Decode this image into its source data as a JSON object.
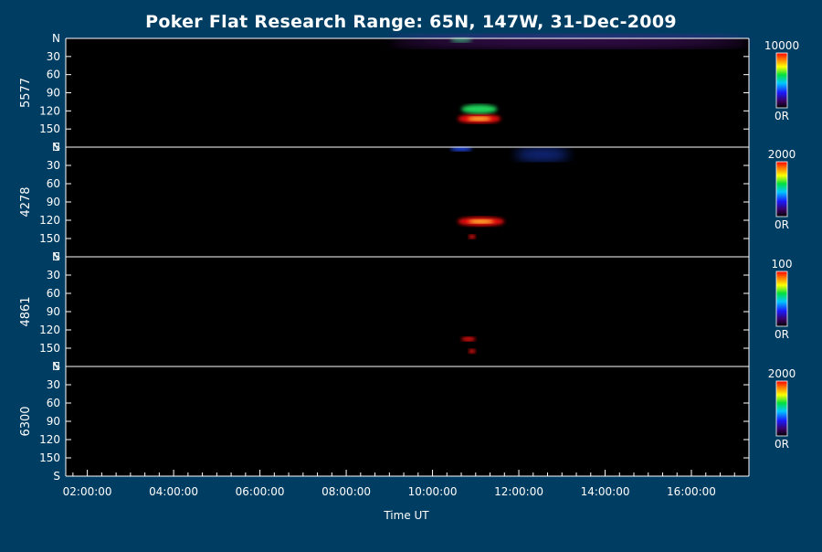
{
  "title": "Poker Flat Research Range: 65N, 147W, 31-Dec-2009",
  "chart_data": {
    "type": "heatmap",
    "title": "Poker Flat Research Range: 65N, 147W, 31-Dec-2009",
    "xlabel": "Time UT",
    "x_ticks": [
      "02:00:00",
      "04:00:00",
      "06:00:00",
      "08:00:00",
      "10:00:00",
      "12:00:00",
      "14:00:00",
      "16:00:00"
    ],
    "xlim": [
      "01:30:00",
      "17:20:00"
    ],
    "y_ticks": [
      "N",
      "30",
      "60",
      "90",
      "120",
      "150",
      "S"
    ],
    "ylim": [
      0,
      180
    ],
    "panels": [
      {
        "name": "5577",
        "colorbar": {
          "max_label": "10000",
          "min_label": "0R"
        },
        "features": [
          {
            "label": "arc",
            "time_start": "10:35:00",
            "time_end": "11:35:00",
            "y_center": 133,
            "intensity": 1.0
          },
          {
            "label": "arc",
            "time_start": "10:40:00",
            "time_end": "11:30:00",
            "y_center": 117,
            "intensity": 0.55
          },
          {
            "label": "north-edge",
            "time_start": "10:25:00",
            "time_end": "10:55:00",
            "y_center": 3,
            "intensity": 0.6
          },
          {
            "label": "north-diffuse",
            "time_start": "09:00:00",
            "time_end": "17:20:00",
            "y_center": 5,
            "intensity": 0.15
          }
        ]
      },
      {
        "name": "4278",
        "colorbar": {
          "max_label": "2000",
          "min_label": "0R"
        },
        "features": [
          {
            "label": "arc",
            "time_start": "10:35:00",
            "time_end": "11:40:00",
            "y_center": 122,
            "intensity": 0.9
          },
          {
            "label": "spot",
            "time_start": "10:50:00",
            "time_end": "11:00:00",
            "y_center": 147,
            "intensity": 1.0
          },
          {
            "label": "north-edge",
            "time_start": "10:25:00",
            "time_end": "10:55:00",
            "y_center": 3,
            "intensity": 0.5
          },
          {
            "label": "diffuse",
            "time_start": "11:55:00",
            "time_end": "13:10:00",
            "y_center": 12,
            "intensity": 0.45
          }
        ]
      },
      {
        "name": "4861",
        "colorbar": {
          "max_label": "100",
          "min_label": "0R"
        },
        "features": [
          {
            "label": "spot",
            "time_start": "10:40:00",
            "time_end": "11:00:00",
            "y_center": 135,
            "intensity": 1.0
          },
          {
            "label": "spot",
            "time_start": "10:50:00",
            "time_end": "11:00:00",
            "y_center": 155,
            "intensity": 1.0
          }
        ]
      },
      {
        "name": "6300",
        "colorbar": {
          "max_label": "2000",
          "min_label": "0R"
        },
        "features": []
      }
    ]
  }
}
